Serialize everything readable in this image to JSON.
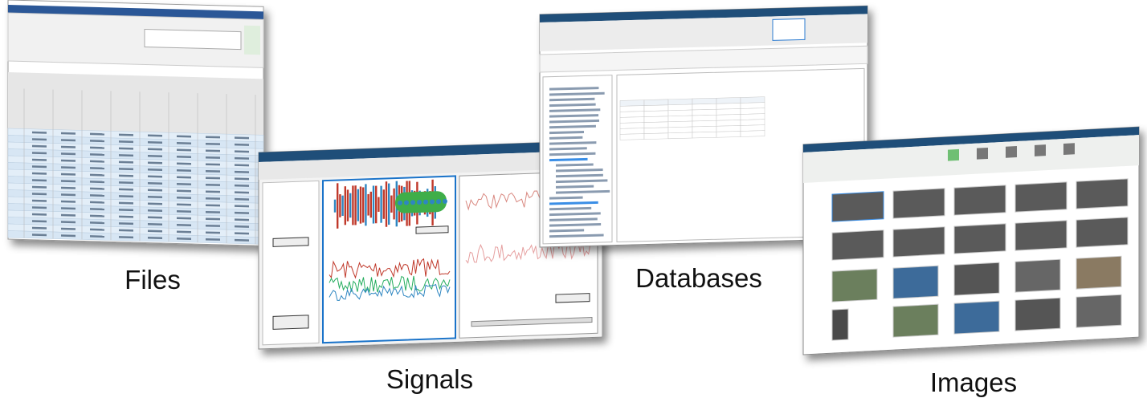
{
  "captions": {
    "files": "Files",
    "signals": "Signals",
    "databases": "Databases",
    "images": "Images"
  }
}
